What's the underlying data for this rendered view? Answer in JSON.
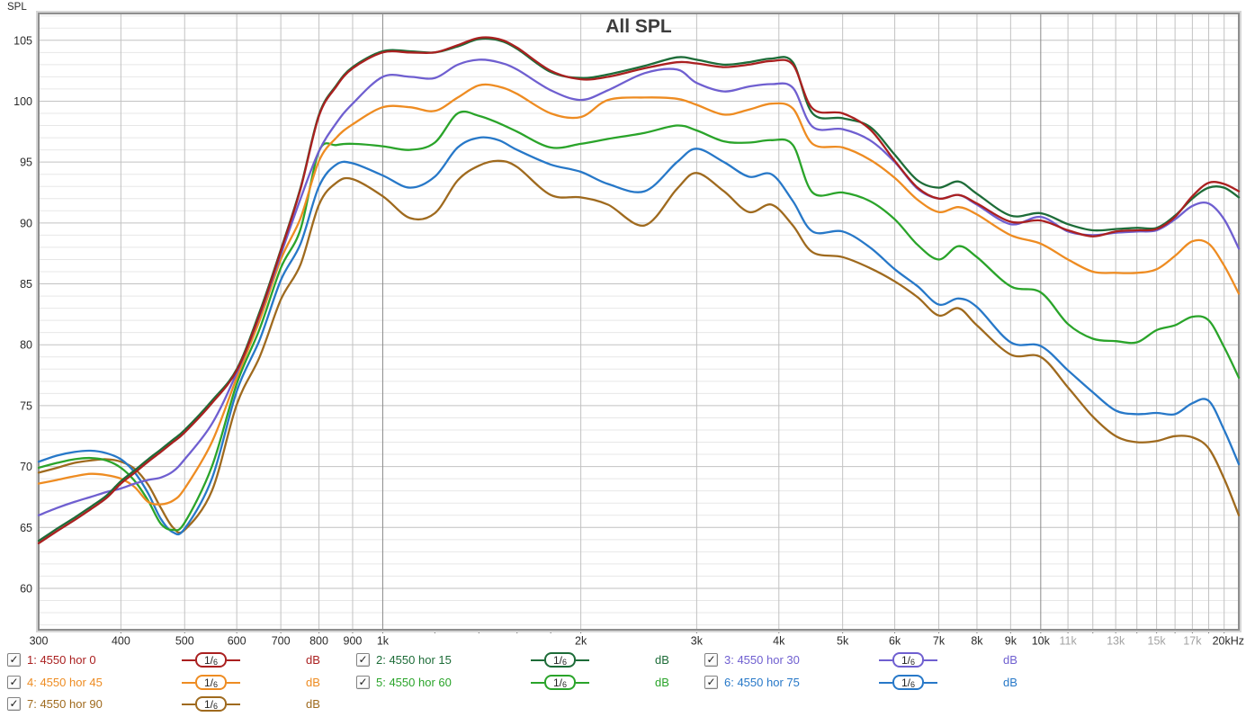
{
  "page": {
    "y_axis_name": "SPL"
  },
  "chart_data": {
    "type": "line",
    "title": "All SPL",
    "ylabel": "SPL",
    "xlabel": "Hz",
    "x_scale": "log",
    "xlim": [
      300,
      20000
    ],
    "ylim": [
      56.6,
      107.2
    ],
    "grid": "on",
    "legend_position": "bottom",
    "y_major_ticks": [
      60,
      65,
      70,
      75,
      80,
      85,
      90,
      95,
      100,
      105
    ],
    "x_tick_labels": [
      {
        "f": 300,
        "t": "300",
        "gray": false
      },
      {
        "f": 400,
        "t": "400",
        "gray": false
      },
      {
        "f": 500,
        "t": "500",
        "gray": false
      },
      {
        "f": 600,
        "t": "600",
        "gray": false
      },
      {
        "f": 700,
        "t": "700",
        "gray": false
      },
      {
        "f": 800,
        "t": "800",
        "gray": false
      },
      {
        "f": 900,
        "t": "900",
        "gray": false
      },
      {
        "f": 1000,
        "t": "1k",
        "gray": false
      },
      {
        "f": 2000,
        "t": "2k",
        "gray": false
      },
      {
        "f": 3000,
        "t": "3k",
        "gray": false
      },
      {
        "f": 4000,
        "t": "4k",
        "gray": false
      },
      {
        "f": 5000,
        "t": "5k",
        "gray": false
      },
      {
        "f": 6000,
        "t": "6k",
        "gray": false
      },
      {
        "f": 7000,
        "t": "7k",
        "gray": false
      },
      {
        "f": 8000,
        "t": "8k",
        "gray": false
      },
      {
        "f": 9000,
        "t": "9k",
        "gray": false
      },
      {
        "f": 10000,
        "t": "10k",
        "gray": false
      },
      {
        "f": 11000,
        "t": "11k",
        "gray": true
      },
      {
        "f": 13000,
        "t": "13k",
        "gray": true
      },
      {
        "f": 15000,
        "t": "15k",
        "gray": true
      },
      {
        "f": 17000,
        "t": "17k",
        "gray": true
      },
      {
        "f": 20000,
        "t": "20kHz",
        "gray": false
      }
    ],
    "grid_freqs": [
      400,
      500,
      600,
      700,
      800,
      900,
      1000,
      2000,
      3000,
      4000,
      5000,
      6000,
      7000,
      8000,
      9000,
      10000,
      11000,
      12000,
      13000,
      14000,
      15000,
      16000,
      17000,
      18000,
      19000
    ],
    "grid_freqs_dark": [
      1000,
      10000
    ],
    "minor_tick_freqs": [
      1200,
      1400,
      1600,
      1800
    ],
    "frequencies": [
      300,
      320,
      340,
      360,
      380,
      400,
      420,
      440,
      460,
      480,
      500,
      550,
      600,
      650,
      700,
      750,
      800,
      850,
      900,
      1000,
      1100,
      1200,
      1300,
      1400,
      1500,
      1600,
      1800,
      2000,
      2200,
      2500,
      2800,
      3000,
      3300,
      3600,
      3900,
      4200,
      4500,
      5000,
      5500,
      6000,
      6500,
      7000,
      7500,
      8000,
      9000,
      10000,
      11000,
      12000,
      13000,
      14000,
      15000,
      16000,
      17000,
      18000,
      19000,
      20000
    ],
    "series": [
      {
        "name": "7: 4550 hor 90",
        "color": "#9f6a1e",
        "values": [
          69.5,
          69.9,
          70.3,
          70.5,
          70.6,
          70.4,
          69.8,
          68.5,
          66.6,
          65.0,
          64.8,
          68.0,
          75.1,
          79.0,
          83.7,
          86.6,
          91.5,
          93.3,
          93.6,
          92.2,
          90.4,
          90.8,
          93.5,
          94.7,
          95.1,
          94.6,
          92.3,
          92.1,
          91.5,
          89.8,
          92.8,
          94.1,
          92.6,
          90.9,
          91.5,
          89.8,
          87.6,
          87.2,
          86.3,
          85.2,
          83.9,
          82.4,
          83.0,
          81.6,
          79.2,
          79.0,
          76.5,
          74.1,
          72.5,
          72.0,
          72.1,
          72.5,
          72.4,
          71.5,
          69.0,
          66.0
        ]
      },
      {
        "name": "6: 4550 hor 75",
        "color": "#2778c8",
        "values": [
          70.4,
          70.9,
          71.2,
          71.3,
          71.1,
          70.6,
          69.5,
          67.8,
          65.7,
          64.6,
          64.9,
          69.0,
          76.2,
          80.4,
          85.3,
          88.3,
          93.0,
          94.8,
          94.9,
          93.9,
          92.9,
          93.8,
          96.2,
          97.0,
          96.8,
          96.0,
          94.8,
          94.2,
          93.2,
          92.6,
          95.0,
          96.1,
          95.0,
          93.8,
          94.0,
          91.8,
          89.3,
          89.3,
          88.0,
          86.2,
          84.8,
          83.3,
          83.8,
          83.1,
          80.2,
          79.9,
          77.9,
          76.1,
          74.6,
          74.3,
          74.4,
          74.3,
          75.2,
          75.4,
          73.0,
          70.2
        ]
      },
      {
        "name": "5: 4550 hor 60",
        "color": "#2aa42a",
        "values": [
          69.9,
          70.3,
          70.6,
          70.7,
          70.5,
          69.9,
          68.8,
          67.2,
          65.3,
          64.8,
          65.4,
          70.0,
          76.8,
          81.3,
          86.3,
          89.5,
          95.9,
          96.4,
          96.5,
          96.3,
          96.0,
          96.6,
          99.0,
          98.8,
          98.2,
          97.5,
          96.2,
          96.5,
          96.9,
          97.4,
          98.0,
          97.6,
          96.7,
          96.6,
          96.8,
          96.4,
          92.5,
          92.5,
          91.8,
          90.3,
          88.2,
          87.0,
          88.1,
          87.2,
          84.8,
          84.3,
          81.7,
          80.5,
          80.3,
          80.2,
          81.2,
          81.6,
          82.3,
          82.0,
          79.8,
          77.3
        ]
      },
      {
        "name": "4: 4550 hor 45",
        "color": "#ee8c22",
        "values": [
          68.6,
          68.9,
          69.2,
          69.4,
          69.3,
          69.0,
          68.3,
          67.1,
          66.9,
          67.2,
          68.2,
          72.0,
          77.3,
          82.0,
          87.0,
          90.4,
          95.1,
          97.0,
          98.1,
          99.5,
          99.5,
          99.2,
          100.3,
          101.3,
          101.2,
          100.6,
          99.0,
          98.7,
          100.1,
          100.3,
          100.2,
          99.7,
          98.9,
          99.3,
          99.8,
          99.4,
          96.5,
          96.2,
          95.2,
          93.7,
          91.9,
          90.9,
          91.3,
          90.7,
          89.0,
          88.3,
          87.0,
          86.0,
          85.9,
          85.9,
          86.2,
          87.3,
          88.5,
          88.3,
          86.5,
          84.2
        ]
      },
      {
        "name": "3: 4550 hor 30",
        "color": "#6f5fd0",
        "values": [
          66.0,
          66.6,
          67.1,
          67.5,
          67.9,
          68.2,
          68.6,
          68.9,
          69.1,
          69.6,
          70.6,
          73.5,
          77.7,
          82.4,
          87.4,
          92.0,
          95.9,
          98.2,
          99.8,
          102.0,
          102.0,
          101.9,
          103.0,
          103.4,
          103.2,
          102.6,
          100.9,
          100.1,
          100.9,
          102.3,
          102.6,
          101.5,
          100.8,
          101.2,
          101.4,
          101.1,
          97.9,
          97.7,
          96.8,
          95.0,
          92.8,
          92.0,
          92.3,
          91.5,
          89.9,
          90.5,
          89.3,
          89.0,
          89.2,
          89.3,
          89.4,
          90.3,
          91.4,
          91.6,
          90.3,
          87.9
        ]
      },
      {
        "name": "2: 4550 hor 15",
        "color": "#1d6c38",
        "values": [
          63.9,
          64.9,
          65.8,
          66.7,
          67.6,
          68.8,
          69.7,
          70.6,
          71.4,
          72.2,
          73.0,
          75.4,
          78.0,
          82.7,
          87.8,
          92.9,
          98.9,
          101.3,
          102.8,
          104.1,
          104.1,
          104.0,
          104.5,
          105.1,
          105.0,
          104.3,
          102.4,
          101.9,
          102.2,
          102.9,
          103.6,
          103.4,
          103.0,
          103.2,
          103.5,
          103.2,
          99.0,
          98.6,
          97.9,
          95.6,
          93.5,
          92.9,
          93.4,
          92.4,
          90.6,
          90.8,
          89.9,
          89.4,
          89.5,
          89.6,
          89.6,
          90.6,
          92.0,
          92.9,
          92.9,
          92.1
        ]
      },
      {
        "name": "1: 4550 hor 0",
        "color": "#aa2020",
        "values": [
          63.7,
          64.7,
          65.6,
          66.5,
          67.4,
          68.6,
          69.5,
          70.4,
          71.2,
          72.0,
          72.8,
          75.2,
          77.9,
          82.5,
          87.7,
          92.8,
          98.8,
          101.2,
          102.7,
          104.0,
          104.0,
          104.0,
          104.6,
          105.2,
          105.1,
          104.4,
          102.5,
          101.8,
          102.0,
          102.7,
          103.2,
          103.1,
          102.8,
          103.0,
          103.3,
          103.0,
          99.4,
          99.0,
          97.7,
          95.1,
          92.9,
          92.0,
          92.3,
          91.6,
          90.1,
          90.2,
          89.4,
          88.9,
          89.3,
          89.4,
          89.5,
          90.5,
          92.2,
          93.3,
          93.2,
          92.6
        ]
      }
    ],
    "colors": {
      "grid_minor": "#e7e7e7",
      "grid_major": "#c2c2c2",
      "grid_dark": "#8a8a8a",
      "border": "#8e8e8e",
      "border_outer": "#d6d6d6",
      "label": "#2a2a2a",
      "label_gray": "#a3a3a3",
      "title": "#3c3c3c"
    }
  },
  "legend": {
    "check_glyph": "✓",
    "items": [
      {
        "id": "1",
        "label": "1: 4550 hor 0",
        "smoothing_num": "1/",
        "smoothing_den": "6",
        "unit": "dB",
        "color": "#aa2020",
        "checked": true,
        "col": 0,
        "row": 0
      },
      {
        "id": "2",
        "label": "2: 4550 hor 15",
        "smoothing_num": "1/",
        "smoothing_den": "6",
        "unit": "dB",
        "color": "#1d6c38",
        "checked": true,
        "col": 1,
        "row": 0
      },
      {
        "id": "3",
        "label": "3: 4550 hor 30",
        "smoothing_num": "1/",
        "smoothing_den": "6",
        "unit": "dB",
        "color": "#6f5fd0",
        "checked": true,
        "col": 2,
        "row": 0
      },
      {
        "id": "4",
        "label": "4: 4550 hor 45",
        "smoothing_num": "1/",
        "smoothing_den": "6",
        "unit": "dB",
        "color": "#ee8c22",
        "checked": true,
        "col": 0,
        "row": 1
      },
      {
        "id": "5",
        "label": "5: 4550 hor 60",
        "smoothing_num": "1/",
        "smoothing_den": "6",
        "unit": "dB",
        "color": "#2aa42a",
        "checked": true,
        "col": 1,
        "row": 1
      },
      {
        "id": "6",
        "label": "6: 4550 hor 75",
        "smoothing_num": "1/",
        "smoothing_den": "6",
        "unit": "dB",
        "color": "#2778c8",
        "checked": true,
        "col": 2,
        "row": 1
      },
      {
        "id": "7",
        "label": "7: 4550 hor 90",
        "smoothing_num": "1/",
        "smoothing_den": "6",
        "unit": "dB",
        "color": "#9f6a1e",
        "checked": true,
        "col": 0,
        "row": 2
      }
    ]
  }
}
